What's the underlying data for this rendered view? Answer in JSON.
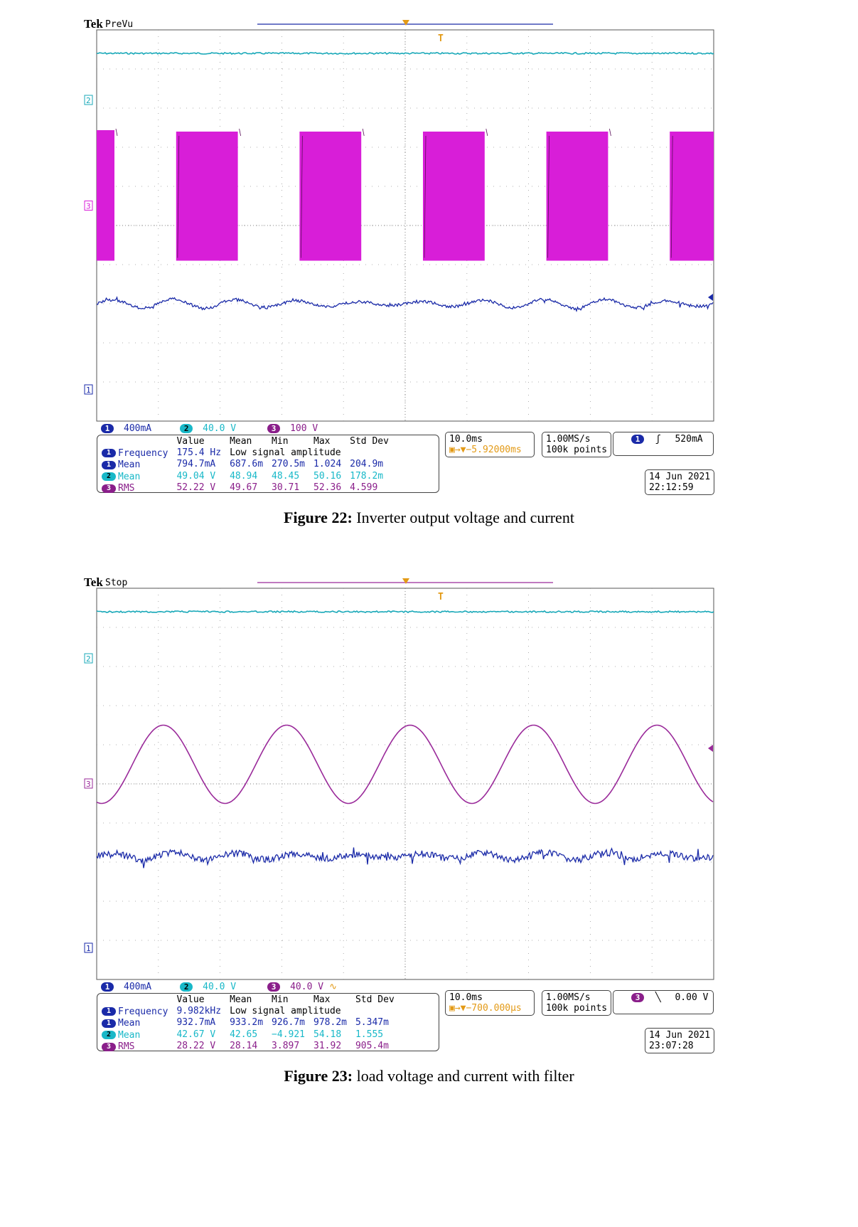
{
  "colors": {
    "ch1": "#1a2aa8",
    "ch2": "#18a8b8",
    "ch3_fig22": "#d81ed8",
    "ch3_fig23": "#9a2a9a",
    "trigger": "#e39a16"
  },
  "scopes": [
    {
      "tek": "Tek",
      "status": "PreVu",
      "trigger_marker": "T",
      "ch_markers": {
        "ch2": "2",
        "ch3": "3",
        "ch1": "1"
      },
      "channels": {
        "ch1_scale": "400mA",
        "ch2_scale": "40.0 V",
        "ch3_scale": "100 V",
        "ch3_suffix": ""
      },
      "measurements": {
        "headers": [
          "Value",
          "Mean",
          "Min",
          "Max",
          "Std Dev"
        ],
        "rows": [
          {
            "ch": "1",
            "name": "Frequency",
            "value": "175.4 Hz",
            "note": "Low signal amplitude"
          },
          {
            "ch": "1",
            "name": "Mean",
            "value": "794.7mA",
            "mean": "687.6m",
            "min": "270.5m",
            "max": "1.024",
            "std": "204.9m"
          },
          {
            "ch": "2",
            "name": "Mean",
            "value": "49.04 V",
            "mean": "48.94",
            "min": "48.45",
            "max": "50.16",
            "std": "178.2m"
          },
          {
            "ch": "3",
            "name": "RMS",
            "value": "52.22 V",
            "mean": "49.67",
            "min": "30.71",
            "max": "52.36",
            "std": "4.599"
          }
        ]
      },
      "timebase": {
        "scale": "10.0ms",
        "position": "→▼−5.92000ms"
      },
      "acquisition": {
        "rate": "1.00MS/s",
        "points": "100k points"
      },
      "trigger": {
        "ch": "1",
        "slope": "ʃ",
        "level": "520mA"
      },
      "date": "14 Jun 2021",
      "time": "22:12:59",
      "caption": {
        "label": "Figure  22:",
        "text": "Inverter output voltage and current"
      }
    },
    {
      "tek": "Tek",
      "status": "Stop",
      "trigger_marker": "T",
      "ch_markers": {
        "ch2": "2",
        "ch3": "3",
        "ch1": "1"
      },
      "channels": {
        "ch1_scale": "400mA",
        "ch2_scale": "40.0 V",
        "ch3_scale": "40.0 V",
        "ch3_suffix": "∿"
      },
      "measurements": {
        "headers": [
          "Value",
          "Mean",
          "Min",
          "Max",
          "Std Dev"
        ],
        "rows": [
          {
            "ch": "1",
            "name": "Frequency",
            "value": "9.982kHz",
            "note": "Low signal amplitude"
          },
          {
            "ch": "1",
            "name": "Mean",
            "value": "932.7mA",
            "mean": "933.2m",
            "min": "926.7m",
            "max": "978.2m",
            "std": "5.347m"
          },
          {
            "ch": "2",
            "name": "Mean",
            "value": "42.67 V",
            "mean": "42.65",
            "min": "−4.921",
            "max": "54.18",
            "std": "1.555"
          },
          {
            "ch": "3",
            "name": "RMS",
            "value": "28.22 V",
            "mean": "28.14",
            "min": "3.897",
            "max": "31.92",
            "std": "905.4m"
          }
        ]
      },
      "timebase": {
        "scale": "10.0ms",
        "position": "→▼−700.000µs"
      },
      "acquisition": {
        "rate": "1.00MS/s",
        "points": "100k points"
      },
      "trigger": {
        "ch": "3",
        "slope": "╲",
        "level": "0.00 V"
      },
      "date": "14 Jun 2021",
      "time": "23:07:28",
      "caption": {
        "label": "Figure  23:",
        "text": "load voltage and current with filter"
      }
    }
  ],
  "chart_data": [
    {
      "type": "line",
      "x_divisions": 10,
      "y_divisions": 10,
      "time_per_div": "10.0ms",
      "series": [
        {
          "name": "2",
          "shape": "dc",
          "level_div": 4.4
        },
        {
          "name": "3",
          "shape": "pwm",
          "period_div": 2.0,
          "envelope_div": [
            2.4,
            3.4,
            1.1
          ]
        },
        {
          "name": "1",
          "shape": "sine_noisy",
          "period_div": 1.0,
          "offset_div": -2.0,
          "amplitude_div": 0.12
        }
      ]
    },
    {
      "type": "line",
      "x_divisions": 10,
      "y_divisions": 10,
      "time_per_div": "10.0ms",
      "series": [
        {
          "name": "2",
          "shape": "dc",
          "level_div": 4.4
        },
        {
          "name": "3",
          "shape": "sine",
          "period_div": 2.0,
          "offset_div": 0.5,
          "amplitude_div": 1.0
        },
        {
          "name": "1",
          "shape": "sine_noisy",
          "period_div": 1.0,
          "offset_div": -1.85,
          "amplitude_div": 0.1
        }
      ]
    }
  ]
}
